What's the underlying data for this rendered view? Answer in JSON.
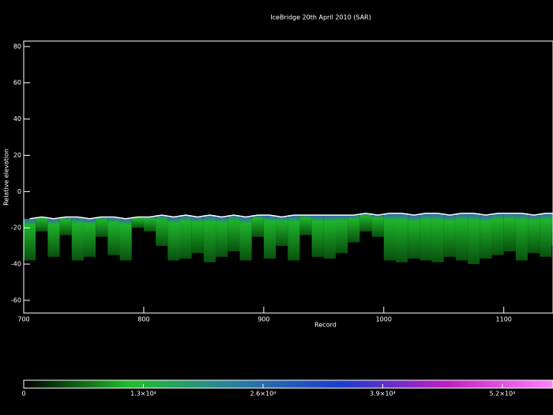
{
  "chart_data": {
    "type": "echogram",
    "title": "IceBridge 20th April 2010 (SAR)",
    "xlabel": "Record",
    "ylabel": "Relative elevation",
    "x": [
      700,
      710,
      720,
      730,
      740,
      750,
      760,
      770,
      780,
      790,
      800,
      810,
      820,
      830,
      840,
      850,
      860,
      870,
      880,
      890,
      900,
      910,
      920,
      930,
      940,
      950,
      960,
      970,
      980,
      990,
      1000,
      1010,
      1020,
      1030,
      1040,
      1050,
      1060,
      1070,
      1080,
      1090,
      1100,
      1110,
      1120,
      1130,
      1140
    ],
    "surface": [
      -15,
      -14,
      -15,
      -14,
      -14,
      -15,
      -14,
      -14,
      -15,
      -14,
      -14,
      -13,
      -14,
      -13,
      -14,
      -13,
      -14,
      -13,
      -14,
      -13,
      -13,
      -14,
      -13,
      -13,
      -13,
      -13,
      -13,
      -13,
      -12,
      -13,
      -12,
      -12,
      -13,
      -12,
      -12,
      -13,
      -12,
      -12,
      -13,
      -12,
      -12,
      -12,
      -13,
      -12,
      -12
    ],
    "bottom": [
      -38,
      -22,
      -36,
      -24,
      -38,
      -36,
      -25,
      -35,
      -38,
      -20,
      -22,
      -30,
      -38,
      -37,
      -34,
      -39,
      -36,
      -33,
      -38,
      -25,
      -37,
      -30,
      -38,
      -24,
      -36,
      -37,
      -34,
      -28,
      -22,
      -25,
      -38,
      -39,
      -37,
      -38,
      -39,
      -36,
      -38,
      -40,
      -37,
      -35,
      -33,
      -38,
      -34,
      -36,
      -30
    ],
    "echo_color": "#1fbf2a",
    "surface_color": "#ffffff",
    "xlim": [
      700,
      1141
    ],
    "ylim": [
      -67,
      83
    ],
    "xticks": [
      700,
      800,
      900,
      1000,
      1100
    ],
    "yticks": [
      -60,
      -40,
      -20,
      0,
      20,
      40,
      60,
      80
    ],
    "colorbar": {
      "lim": [
        0,
        57500
      ],
      "ticks": [
        0,
        {
          "value": 13000,
          "label": "1.3×10⁴"
        },
        {
          "value": 26000,
          "label": "2.6×10⁴"
        },
        {
          "value": 39000,
          "label": "3.9×10⁴"
        },
        {
          "value": 52000,
          "label": "5.2×10⁴"
        }
      ],
      "colors": [
        "#000000",
        "#1fbf2a",
        "#2a7fa0",
        "#1a3cd0",
        "#c020c0",
        "#ff80ff"
      ]
    }
  }
}
